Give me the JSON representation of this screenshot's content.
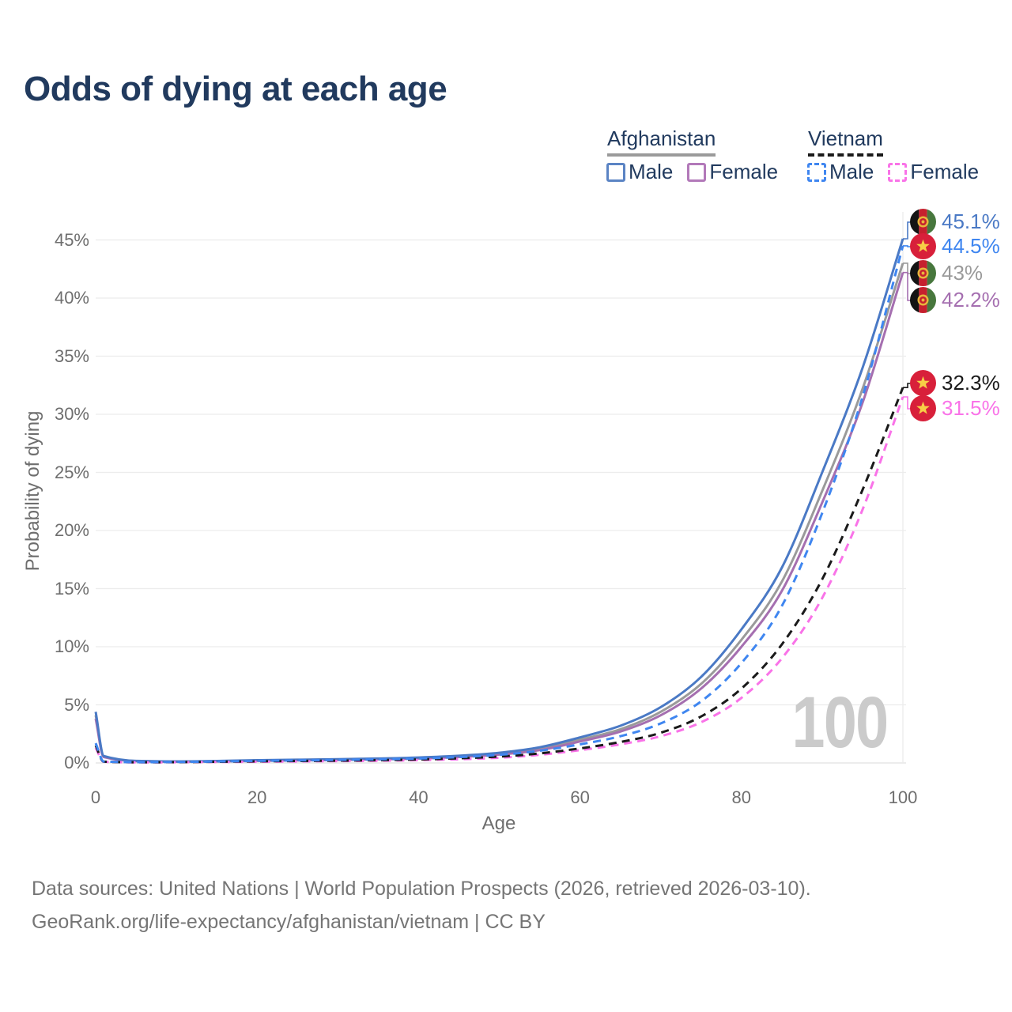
{
  "title": "Odds of dying at each age",
  "age_indicator": "100",
  "legend": {
    "afghanistan": {
      "label": "Afghanistan",
      "male_label": "Male",
      "female_label": "Female"
    },
    "vietnam": {
      "label": "Vietnam",
      "male_label": "Male",
      "female_label": "Female"
    }
  },
  "axes": {
    "x_label": "Age",
    "y_label": "Probability of dying",
    "x_ticks": [
      "0",
      "20",
      "40",
      "60",
      "80",
      "100"
    ],
    "y_ticks": [
      "0%",
      "5%",
      "10%",
      "15%",
      "20%",
      "25%",
      "30%",
      "35%",
      "40%",
      "45%"
    ]
  },
  "footer": {
    "line1": "Data sources: United Nations | World Population Prospects (2026, retrieved 2026-03-10).",
    "line2": "GeoRank.org/life-expectancy/afghanistan/vietnam | CC BY"
  },
  "colors": {
    "afghanistan_male": "#4a79c5",
    "afghanistan_both": "#9a9a9a",
    "afghanistan_female": "#a56fb0",
    "vietnam_male": "#3f86f0",
    "vietnam_both": "#1a1a1a",
    "vietnam_female": "#f973e8",
    "title_text": "#213a5e",
    "axis_text": "#6e6e6e",
    "gridline": "#ececec",
    "watermark": "#cbcbcb"
  },
  "chart_data": {
    "type": "line",
    "title": "Odds of dying at each age",
    "xlabel": "Age",
    "ylabel": "Probability of dying",
    "xlim": [
      0,
      100
    ],
    "ylim": [
      0,
      45
    ],
    "y_units": "percent",
    "grid": "horizontal",
    "legend_position": "top-right",
    "x": [
      0,
      1,
      5,
      10,
      15,
      20,
      25,
      30,
      35,
      40,
      45,
      50,
      55,
      60,
      65,
      70,
      75,
      80,
      85,
      90,
      95,
      100
    ],
    "series": [
      {
        "id": "afghanistan-male",
        "country": "Afghanistan",
        "sex": "Male",
        "style": "solid",
        "color": "#4a79c5",
        "end_label": "45.1%",
        "flag_icon": "afghanistan-flag-icon",
        "values": [
          4.4,
          0.6,
          0.18,
          0.13,
          0.17,
          0.24,
          0.28,
          0.32,
          0.38,
          0.47,
          0.62,
          0.88,
          1.35,
          2.2,
          3.2,
          4.8,
          7.4,
          11.5,
          16.8,
          25.0,
          34.0,
          45.1
        ]
      },
      {
        "id": "vietnam-male",
        "country": "Vietnam",
        "sex": "Male",
        "style": "dashed",
        "color": "#3f86f0",
        "end_label": "44.5%",
        "flag_icon": "vietnam-flag-icon",
        "values": [
          1.7,
          0.12,
          0.07,
          0.08,
          0.12,
          0.18,
          0.22,
          0.26,
          0.31,
          0.38,
          0.5,
          0.7,
          1.05,
          1.6,
          2.3,
          3.4,
          5.3,
          8.6,
          13.5,
          21.5,
          31.5,
          44.5
        ]
      },
      {
        "id": "afghanistan-both",
        "country": "Afghanistan",
        "sex": "Both sexes",
        "style": "solid",
        "color": "#9a9a9a",
        "end_label": "43%",
        "flag_icon": "afghanistan-flag-icon",
        "values": [
          4.1,
          0.55,
          0.16,
          0.12,
          0.15,
          0.21,
          0.25,
          0.29,
          0.34,
          0.42,
          0.56,
          0.79,
          1.22,
          2.0,
          2.9,
          4.4,
          6.8,
          10.6,
          15.6,
          23.4,
          32.2,
          43.0
        ]
      },
      {
        "id": "afghanistan-female",
        "country": "Afghanistan",
        "sex": "Female",
        "style": "solid",
        "color": "#a56fb0",
        "end_label": "42.2%",
        "flag_icon": "afghanistan-flag-icon",
        "values": [
          3.8,
          0.5,
          0.15,
          0.11,
          0.13,
          0.18,
          0.22,
          0.26,
          0.31,
          0.38,
          0.51,
          0.72,
          1.1,
          1.85,
          2.7,
          4.1,
          6.4,
          10.0,
          14.8,
          22.4,
          31.0,
          42.2
        ]
      },
      {
        "id": "vietnam-both",
        "country": "Vietnam",
        "sex": "Both sexes",
        "style": "dashed",
        "color": "#1a1a1a",
        "end_label": "32.3%",
        "flag_icon": "vietnam-flag-icon",
        "values": [
          1.5,
          0.11,
          0.06,
          0.07,
          0.1,
          0.14,
          0.17,
          0.2,
          0.24,
          0.3,
          0.4,
          0.55,
          0.82,
          1.25,
          1.8,
          2.6,
          4.0,
          6.4,
          10.2,
          15.8,
          23.5,
          32.3
        ]
      },
      {
        "id": "vietnam-female",
        "country": "Vietnam",
        "sex": "Female",
        "style": "dashed",
        "color": "#f973e8",
        "end_label": "31.5%",
        "flag_icon": "vietnam-flag-icon",
        "values": [
          1.3,
          0.1,
          0.05,
          0.06,
          0.08,
          0.1,
          0.13,
          0.16,
          0.19,
          0.24,
          0.32,
          0.45,
          0.7,
          1.1,
          1.6,
          2.3,
          3.5,
          5.6,
          9.0,
          14.2,
          21.8,
          31.5
        ]
      }
    ]
  }
}
